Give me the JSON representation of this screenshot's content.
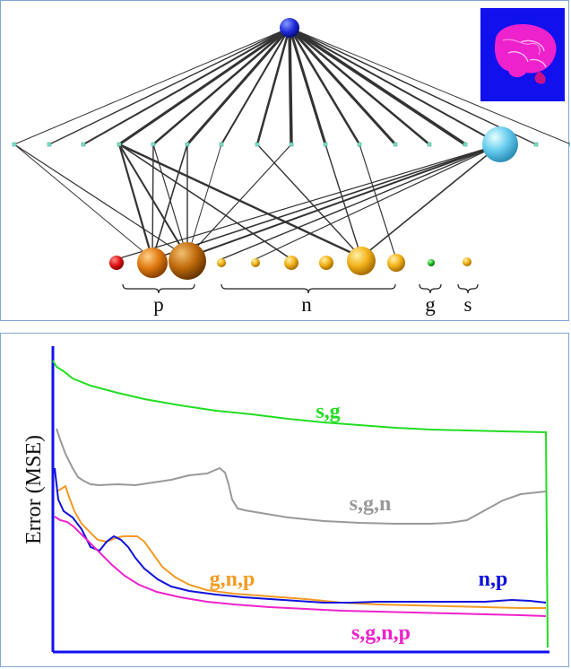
{
  "network": {
    "groups": [
      {
        "label": "p"
      },
      {
        "label": "n"
      },
      {
        "label": "g"
      },
      {
        "label": "s"
      }
    ],
    "colors": {
      "root": "#1f2bd8",
      "link": "#333333",
      "hidden_node": "#7fe0c8",
      "highlight_hidden": "#66ccee",
      "red": "#dd1111",
      "orange": "#e07a10",
      "dark_orange": "#c87010",
      "gold": "#f2b21a",
      "green": "#22bb22"
    },
    "thumbnail": {
      "background": "#1111ee",
      "tissue": "#ee22cc"
    }
  },
  "error_chart": {
    "ylabel": "Error (MSE)",
    "curve_labels": [
      {
        "text": "s,g",
        "color": "#22dd22"
      },
      {
        "text": "s,g,n",
        "color": "#999999"
      },
      {
        "text": "g,n,p",
        "color": "#f59a23"
      },
      {
        "text": "n,p",
        "color": "#1111dd"
      },
      {
        "text": "s,g,n,p",
        "color": "#ee22cc"
      }
    ],
    "axis_color": "#1111ee"
  }
}
